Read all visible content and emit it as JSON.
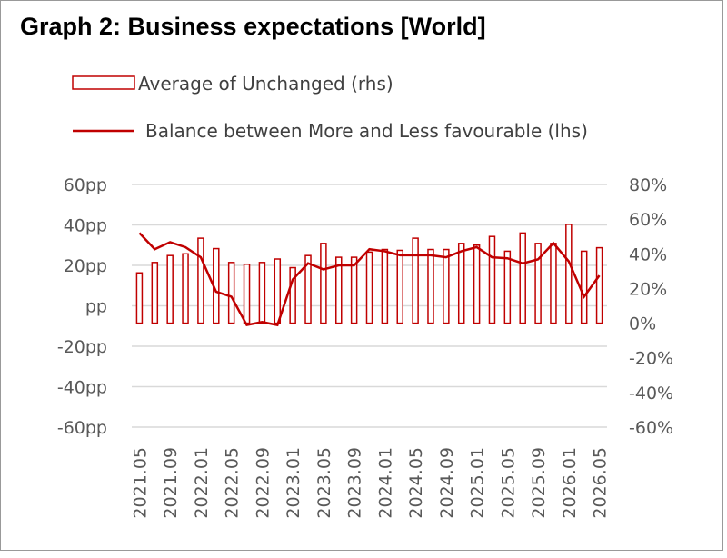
{
  "chart_data": {
    "type": "bar-line",
    "title": "Graph 2: Business expectations [World]",
    "categories": [
      "2021.05",
      null,
      "2021.09",
      null,
      "2022.01",
      null,
      "2022.05",
      null,
      "2022.09",
      null,
      "2023.01",
      null,
      "2023.05",
      null,
      "2023.09",
      null,
      "2024.01",
      null,
      "2024.05",
      null,
      "2024.09",
      null,
      "2025.01",
      null,
      "2025.05",
      null,
      "2025.09",
      null,
      "2026.01",
      null,
      "2026.05"
    ],
    "series": [
      {
        "name": "Average of Unchanged (rhs)",
        "type": "bar",
        "axis": "y2",
        "color": "#c00000",
        "values": [
          29,
          35,
          39,
          40,
          49,
          43,
          35,
          34,
          35,
          37,
          32,
          39,
          46,
          38,
          38,
          41,
          42.5,
          42,
          49,
          42.5,
          42.5,
          46,
          45,
          50,
          41.5,
          52,
          46,
          46,
          57,
          41.5,
          43.5
        ]
      },
      {
        "name": "Balance between More and Less favourable (lhs)",
        "type": "line",
        "color": "#c00000",
        "values": [
          36,
          28,
          31.5,
          29,
          24,
          7,
          4.5,
          -9.5,
          -8,
          -9.5,
          13,
          21,
          18,
          20,
          20,
          28,
          27,
          25,
          25,
          25,
          24,
          27,
          29,
          24,
          23.5,
          21,
          23,
          31,
          22,
          4.5,
          15
        ]
      }
    ],
    "ylim": [
      -60,
      60
    ],
    "yticks": [
      {
        "value": -60,
        "label": "-60pp"
      },
      {
        "value": -40,
        "label": "-40pp"
      },
      {
        "value": -20,
        "label": "-20pp"
      },
      {
        "value": 0,
        "label": "pp"
      },
      {
        "value": 20,
        "label": "20pp"
      },
      {
        "value": 40,
        "label": "40pp"
      },
      {
        "value": 60,
        "label": "60pp"
      }
    ],
    "y2lim": [
      -60,
      80
    ],
    "y2ticks": [
      {
        "value": -60,
        "label": "-60%"
      },
      {
        "value": -40,
        "label": "-40%"
      },
      {
        "value": -20,
        "label": "-20%"
      },
      {
        "value": 0,
        "label": "0%"
      },
      {
        "value": 20,
        "label": "20%"
      },
      {
        "value": 40,
        "label": "40%"
      },
      {
        "value": 60,
        "label": "60%"
      },
      {
        "value": 80,
        "label": "80%"
      }
    ],
    "grid": true
  }
}
